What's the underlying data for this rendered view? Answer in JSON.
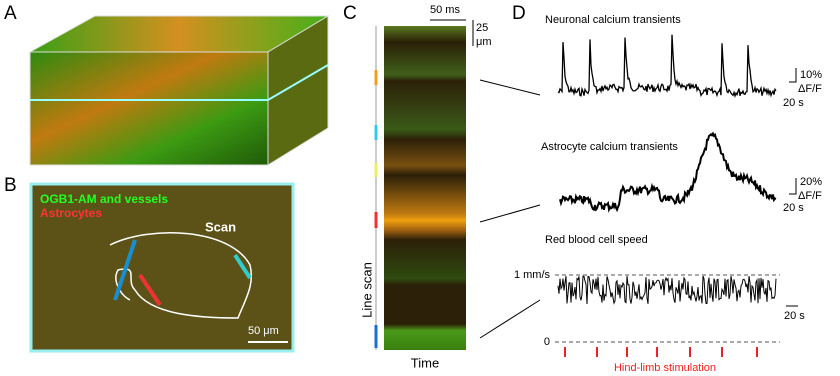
{
  "panels": {
    "a": {
      "label": "A"
    },
    "b": {
      "label": "B",
      "legend": [
        "OGB1-AM and vessels",
        "Astrocytes"
      ],
      "scan_label": "Scan",
      "scale_bar": "50 μm"
    },
    "c": {
      "label": "C",
      "time_scale": "50 ms",
      "space_scale": [
        "25",
        "μm"
      ],
      "y_label": "Line scan",
      "x_label": "Time"
    },
    "d": {
      "label": "D",
      "traces": [
        {
          "title": "Neuronal calcium transients",
          "y_scale": "10%",
          "y_unit": "ΔF/F",
          "x_scale": "20 s"
        },
        {
          "title": "Astrocyte calcium transients",
          "y_scale": "20%",
          "y_unit": "ΔF/F",
          "x_scale": "20 s"
        }
      ],
      "rbc": {
        "title": "Red blood cell speed",
        "level_labels": [
          "1 mm/s",
          "0"
        ],
        "x_scale": "20 s",
        "stimulus_label": "Hind-limb stimulation"
      }
    }
  }
}
